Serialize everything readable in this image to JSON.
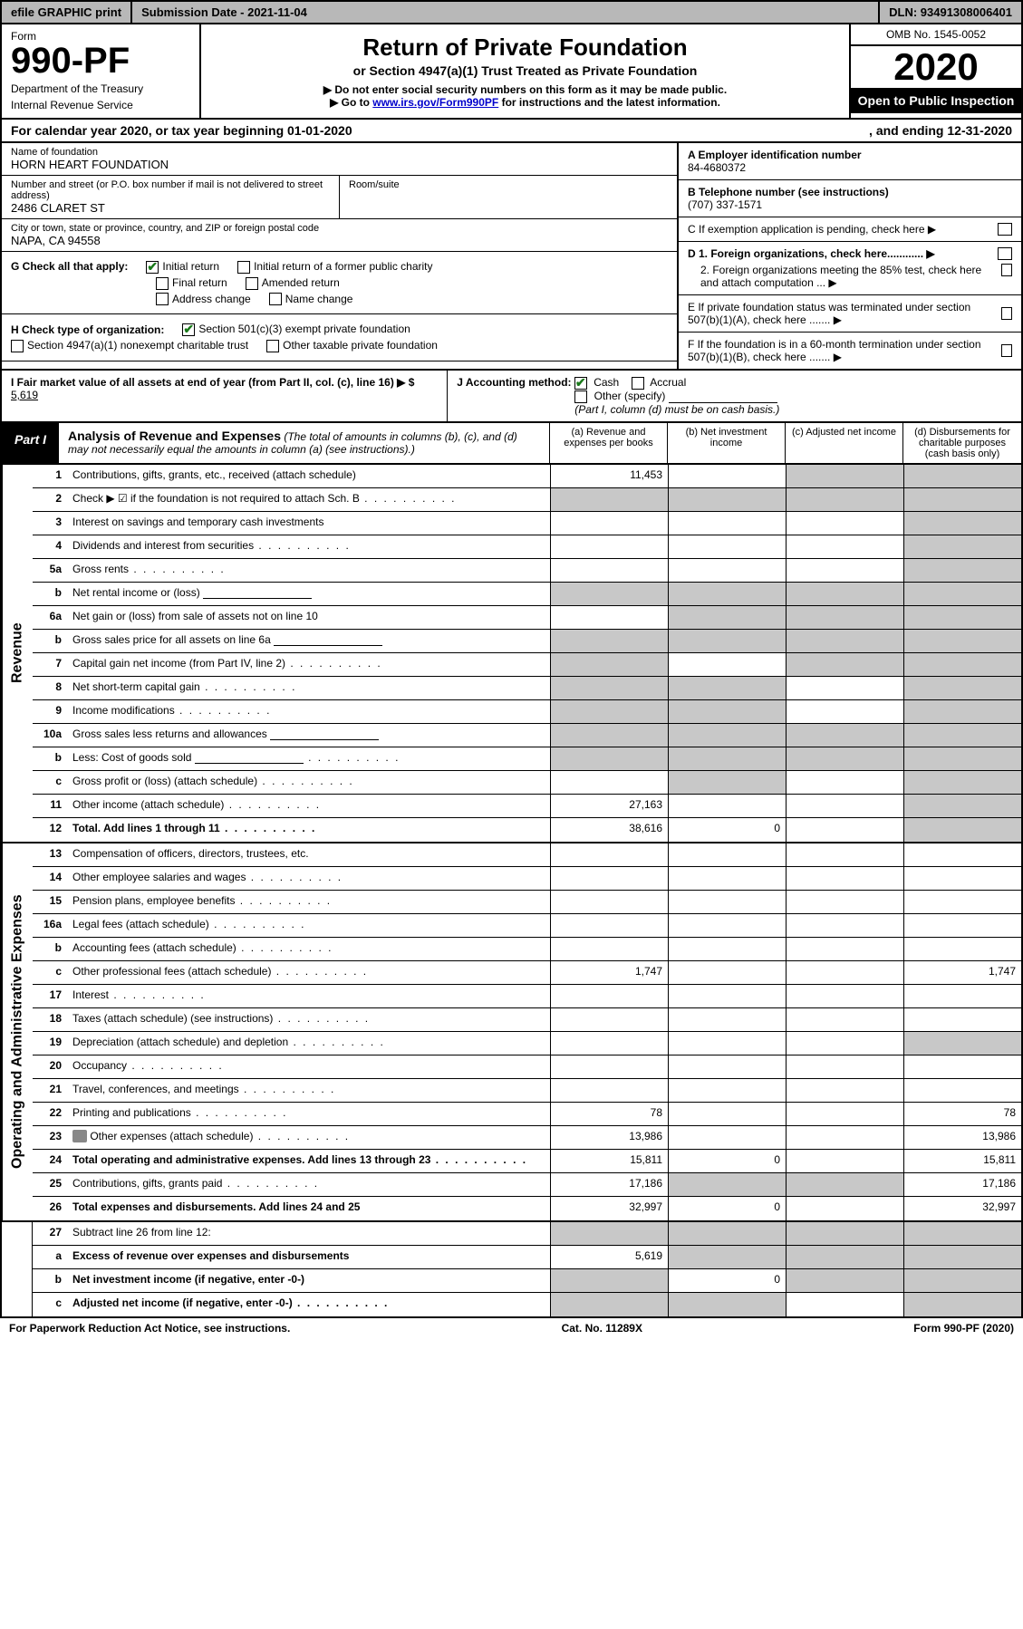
{
  "top_bar": {
    "efile": "efile GRAPHIC print",
    "submission": "Submission Date - 2021-11-04",
    "dln": "DLN: 93491308006401"
  },
  "header": {
    "form_label": "Form",
    "form_number": "990-PF",
    "dept1": "Department of the Treasury",
    "dept2": "Internal Revenue Service",
    "title": "Return of Private Foundation",
    "subtitle": "or Section 4947(a)(1) Trust Treated as Private Foundation",
    "instr1": "▶ Do not enter social security numbers on this form as it may be made public.",
    "instr2_pre": "▶ Go to ",
    "instr2_link": "www.irs.gov/Form990PF",
    "instr2_post": " for instructions and the latest information.",
    "omb": "OMB No. 1545-0052",
    "year": "2020",
    "open": "Open to Public Inspection"
  },
  "cal_year": {
    "left": "For calendar year 2020, or tax year beginning 01-01-2020",
    "right": ", and ending 12-31-2020"
  },
  "foundation": {
    "name_lbl": "Name of foundation",
    "name": "HORN HEART FOUNDATION",
    "addr_lbl": "Number and street (or P.O. box number if mail is not delivered to street address)",
    "addr": "2486 CLARET ST",
    "room_lbl": "Room/suite",
    "city_lbl": "City or town, state or province, country, and ZIP or foreign postal code",
    "city": "NAPA, CA  94558"
  },
  "right_info": {
    "a_lbl": "A Employer identification number",
    "a_val": "84-4680372",
    "b_lbl": "B Telephone number (see instructions)",
    "b_val": "(707) 337-1571",
    "c_lbl": "C If exemption application is pending, check here ▶",
    "d1_lbl": "D 1. Foreign organizations, check here............ ▶",
    "d2_lbl": "2. Foreign organizations meeting the 85% test, check here and attach computation ... ▶",
    "e_lbl": "E  If private foundation status was terminated under section 507(b)(1)(A), check here ....... ▶",
    "f_lbl": "F  If the foundation is in a 60-month termination under section 507(b)(1)(B), check here ....... ▶"
  },
  "g_checks": {
    "label": "G Check all that apply:",
    "initial": "Initial return",
    "initial_former": "Initial return of a former public charity",
    "final_r": "Final return",
    "amended": "Amended return",
    "addr_change": "Address change",
    "name_change": "Name change"
  },
  "h_checks": {
    "label": "H Check type of organization:",
    "c3": "Section 501(c)(3) exempt private foundation",
    "s4947": "Section 4947(a)(1) nonexempt charitable trust",
    "other_tax": "Other taxable private foundation"
  },
  "i_block": {
    "label": "I Fair market value of all assets at end of year (from Part II, col. (c), line 16) ▶ $",
    "value": "5,619"
  },
  "j_block": {
    "label": "J Accounting method:",
    "cash": "Cash",
    "accrual": "Accrual",
    "other": "Other (specify)",
    "note": "(Part I, column (d) must be on cash basis.)"
  },
  "part1": {
    "label": "Part I",
    "title": "Analysis of Revenue and Expenses",
    "title_note": " (The total of amounts in columns (b), (c), and (d) may not necessarily equal the amounts in column (a) (see instructions).)",
    "col_a": "(a)  Revenue and expenses per books",
    "col_b": "(b)  Net investment income",
    "col_c": "(c)  Adjusted net income",
    "col_d": "(d)  Disbursements for charitable purposes (cash basis only)"
  },
  "side_labels": {
    "revenue": "Revenue",
    "expenses": "Operating and Administrative Expenses"
  },
  "rows": [
    {
      "n": "1",
      "d": "Contributions, gifts, grants, etc., received (attach schedule)",
      "a": "11,453",
      "b": "",
      "c": "shade",
      "dcol": "shade"
    },
    {
      "n": "2",
      "d": "Check ▶ ☑ if the foundation is not required to attach Sch. B",
      "dots": true,
      "a": "shade",
      "b": "shade",
      "c": "shade",
      "dcol": "shade",
      "bold_not": true
    },
    {
      "n": "3",
      "d": "Interest on savings and temporary cash investments",
      "a": "",
      "b": "",
      "c": "",
      "dcol": "shade"
    },
    {
      "n": "4",
      "d": "Dividends and interest from securities",
      "dots": true,
      "a": "",
      "b": "",
      "c": "",
      "dcol": "shade"
    },
    {
      "n": "5a",
      "d": "Gross rents",
      "dots": true,
      "a": "",
      "b": "",
      "c": "",
      "dcol": "shade"
    },
    {
      "n": "b",
      "d": "Net rental income or (loss)",
      "inline": true,
      "a": "shade",
      "b": "shade",
      "c": "shade",
      "dcol": "shade"
    },
    {
      "n": "6a",
      "d": "Net gain or (loss) from sale of assets not on line 10",
      "a": "",
      "b": "shade",
      "c": "shade",
      "dcol": "shade"
    },
    {
      "n": "b",
      "d": "Gross sales price for all assets on line 6a",
      "inline": true,
      "a": "shade",
      "b": "shade",
      "c": "shade",
      "dcol": "shade"
    },
    {
      "n": "7",
      "d": "Capital gain net income (from Part IV, line 2)",
      "dots": true,
      "a": "shade",
      "b": "",
      "c": "shade",
      "dcol": "shade"
    },
    {
      "n": "8",
      "d": "Net short-term capital gain",
      "dots": true,
      "a": "shade",
      "b": "shade",
      "c": "",
      "dcol": "shade"
    },
    {
      "n": "9",
      "d": "Income modifications",
      "dots": true,
      "a": "shade",
      "b": "shade",
      "c": "",
      "dcol": "shade"
    },
    {
      "n": "10a",
      "d": "Gross sales less returns and allowances",
      "inline": true,
      "a": "shade",
      "b": "shade",
      "c": "shade",
      "dcol": "shade"
    },
    {
      "n": "b",
      "d": "Less: Cost of goods sold",
      "dots": true,
      "inline": true,
      "a": "shade",
      "b": "shade",
      "c": "shade",
      "dcol": "shade"
    },
    {
      "n": "c",
      "d": "Gross profit or (loss) (attach schedule)",
      "dots": true,
      "a": "",
      "b": "shade",
      "c": "",
      "dcol": "shade"
    },
    {
      "n": "11",
      "d": "Other income (attach schedule)",
      "dots": true,
      "a": "27,163",
      "b": "",
      "c": "",
      "dcol": "shade"
    },
    {
      "n": "12",
      "d": "Total. Add lines 1 through 11",
      "dots": true,
      "bold": true,
      "a": "38,616",
      "b": "0",
      "c": "",
      "dcol": "shade"
    }
  ],
  "exp_rows": [
    {
      "n": "13",
      "d": "Compensation of officers, directors, trustees, etc.",
      "a": "",
      "b": "",
      "c": "",
      "dcol": ""
    },
    {
      "n": "14",
      "d": "Other employee salaries and wages",
      "dots": true,
      "a": "",
      "b": "",
      "c": "",
      "dcol": ""
    },
    {
      "n": "15",
      "d": "Pension plans, employee benefits",
      "dots": true,
      "a": "",
      "b": "",
      "c": "",
      "dcol": ""
    },
    {
      "n": "16a",
      "d": "Legal fees (attach schedule)",
      "dots": true,
      "a": "",
      "b": "",
      "c": "",
      "dcol": ""
    },
    {
      "n": "b",
      "d": "Accounting fees (attach schedule)",
      "dots": true,
      "a": "",
      "b": "",
      "c": "",
      "dcol": ""
    },
    {
      "n": "c",
      "d": "Other professional fees (attach schedule)",
      "dots": true,
      "a": "1,747",
      "b": "",
      "c": "",
      "dcol": "1,747"
    },
    {
      "n": "17",
      "d": "Interest",
      "dots": true,
      "a": "",
      "b": "",
      "c": "",
      "dcol": ""
    },
    {
      "n": "18",
      "d": "Taxes (attach schedule) (see instructions)",
      "dots": true,
      "a": "",
      "b": "",
      "c": "",
      "dcol": ""
    },
    {
      "n": "19",
      "d": "Depreciation (attach schedule) and depletion",
      "dots": true,
      "a": "",
      "b": "",
      "c": "",
      "dcol": "shade"
    },
    {
      "n": "20",
      "d": "Occupancy",
      "dots": true,
      "a": "",
      "b": "",
      "c": "",
      "dcol": ""
    },
    {
      "n": "21",
      "d": "Travel, conferences, and meetings",
      "dots": true,
      "a": "",
      "b": "",
      "c": "",
      "dcol": ""
    },
    {
      "n": "22",
      "d": "Printing and publications",
      "dots": true,
      "a": "78",
      "b": "",
      "c": "",
      "dcol": "78"
    },
    {
      "n": "23",
      "d": "Other expenses (attach schedule)",
      "dots": true,
      "attach": true,
      "a": "13,986",
      "b": "",
      "c": "",
      "dcol": "13,986"
    },
    {
      "n": "24",
      "d": "Total operating and administrative expenses. Add lines 13 through 23",
      "dots": true,
      "bold": true,
      "a": "15,811",
      "b": "0",
      "c": "",
      "dcol": "15,811"
    },
    {
      "n": "25",
      "d": "Contributions, gifts, grants paid",
      "dots": true,
      "a": "17,186",
      "b": "shade",
      "c": "shade",
      "dcol": "17,186"
    },
    {
      "n": "26",
      "d": "Total expenses and disbursements. Add lines 24 and 25",
      "bold": true,
      "a": "32,997",
      "b": "0",
      "c": "",
      "dcol": "32,997"
    }
  ],
  "bottom_rows": [
    {
      "n": "27",
      "d": "Subtract line 26 from line 12:",
      "a": "shade",
      "b": "shade",
      "c": "shade",
      "dcol": "shade"
    },
    {
      "n": "a",
      "d": "Excess of revenue over expenses and disbursements",
      "bold": true,
      "a": "5,619",
      "b": "shade",
      "c": "shade",
      "dcol": "shade"
    },
    {
      "n": "b",
      "d": "Net investment income (if negative, enter -0-)",
      "bold": true,
      "a": "shade",
      "b": "0",
      "c": "shade",
      "dcol": "shade"
    },
    {
      "n": "c",
      "d": "Adjusted net income (if negative, enter -0-)",
      "bold": true,
      "dots": true,
      "a": "shade",
      "b": "shade",
      "c": "",
      "dcol": "shade"
    }
  ],
  "footer": {
    "left": "For Paperwork Reduction Act Notice, see instructions.",
    "mid": "Cat. No. 11289X",
    "right": "Form 990-PF (2020)"
  },
  "colors": {
    "shade": "#c8c8c8",
    "black": "#000000",
    "link": "#0000cc",
    "check": "#1a7a1a"
  }
}
